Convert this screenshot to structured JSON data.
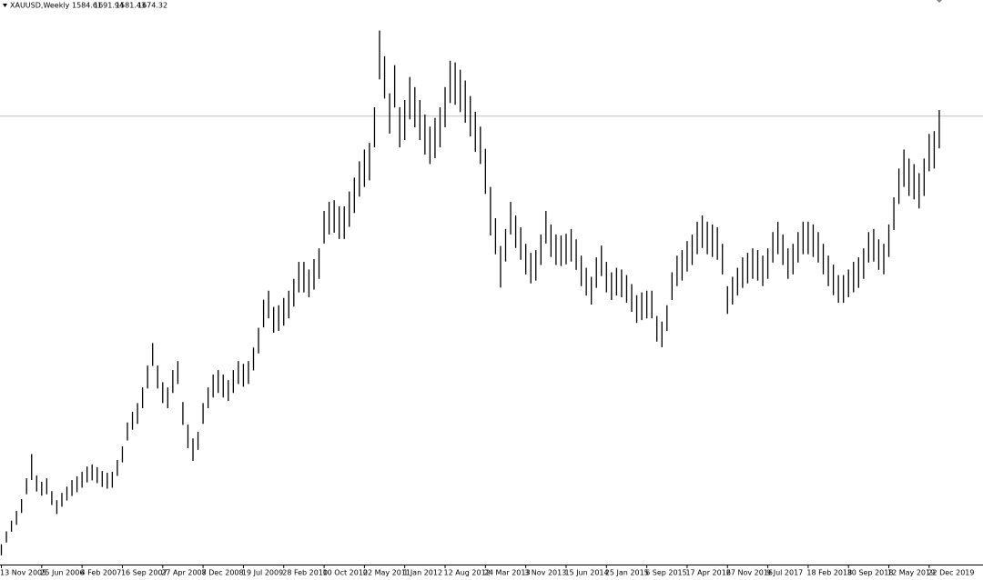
{
  "chart_data": {
    "type": "ohlc",
    "title": "XAUUSD,Weekly",
    "color": "#000000",
    "ohlc": [
      1584.61,
      1691.94,
      1581.43,
      1674.32
    ],
    "ylim": [
      384,
      2009
    ],
    "categories": [
      "13 Nov 2005",
      null,
      null,
      null,
      null,
      null,
      null,
      null,
      "25 Jun 2006",
      null,
      null,
      null,
      null,
      null,
      null,
      null,
      "4 Feb 2007",
      null,
      null,
      null,
      null,
      null,
      null,
      null,
      "16 Sep 2007",
      null,
      null,
      null,
      null,
      null,
      null,
      null,
      "27 Apr 2008",
      null,
      null,
      null,
      null,
      null,
      null,
      null,
      "7 Dec 2008",
      null,
      null,
      null,
      null,
      null,
      null,
      null,
      "19 Jul 2009",
      null,
      null,
      null,
      null,
      null,
      null,
      null,
      "28 Feb 2010",
      null,
      null,
      null,
      null,
      null,
      null,
      null,
      "10 Oct 2010",
      null,
      null,
      null,
      null,
      null,
      null,
      null,
      "22 May 2011",
      null,
      null,
      null,
      null,
      null,
      null,
      null,
      "1 Jan 2012",
      null,
      null,
      null,
      null,
      null,
      null,
      null,
      "12 Aug 2012",
      null,
      null,
      null,
      null,
      null,
      null,
      null,
      "24 Mar 2013",
      null,
      null,
      null,
      null,
      null,
      null,
      null,
      "3 Nov 2013",
      null,
      null,
      null,
      null,
      null,
      null,
      null,
      "15 Jun 2014",
      null,
      null,
      null,
      null,
      null,
      null,
      null,
      "25 Jan 2015",
      null,
      null,
      null,
      null,
      null,
      null,
      null,
      "6 Sep 2015",
      null,
      null,
      null,
      null,
      null,
      null,
      null,
      "17 Apr 2016",
      null,
      null,
      null,
      null,
      null,
      null,
      null,
      "27 Nov 2016",
      null,
      null,
      null,
      null,
      null,
      null,
      null,
      "9 Jul 2017",
      null,
      null,
      null,
      null,
      null,
      null,
      null,
      "18 Feb 2018",
      null,
      null,
      null,
      null,
      null,
      null,
      null,
      "30 Sep 2018",
      null,
      null,
      null,
      null,
      null,
      null,
      null,
      "12 May 2019",
      null,
      null,
      null,
      null,
      null,
      null,
      null,
      "22 Dec 2019",
      null,
      null
    ],
    "high": [
      440,
      477,
      508,
      536,
      570,
      630,
      700,
      638,
      620,
      630,
      593,
      567,
      588,
      606,
      625,
      636,
      649,
      664,
      670,
      662,
      651,
      646,
      649,
      683,
      722,
      791,
      822,
      847,
      892,
      955,
      1020,
      955,
      907,
      892,
      942,
      968,
      850,
      785,
      745,
      764,
      847,
      892,
      929,
      942,
      929,
      913,
      942,
      968,
      960,
      968,
      1007,
      1064,
      1145,
      1171,
      1124,
      1129,
      1150,
      1171,
      1205,
      1254,
      1254,
      1232,
      1262,
      1293,
      1401,
      1427,
      1432,
      1414,
      1414,
      1457,
      1497,
      1544,
      1578,
      1597,
      1700,
      1921,
      1847,
      1740,
      1821,
      1700,
      1721,
      1787,
      1758,
      1721,
      1679,
      1644,
      1669,
      1700,
      1758,
      1834,
      1829,
      1808,
      1777,
      1732,
      1687,
      1644,
      1580,
      1470,
      1380,
      1300,
      1349,
      1427,
      1388,
      1354,
      1306,
      1280,
      1288,
      1333,
      1401,
      1362,
      1333,
      1330,
      1335,
      1349,
      1319,
      1272,
      1237,
      1211,
      1267,
      1301,
      1254,
      1224,
      1237,
      1232,
      1216,
      1190,
      1158,
      1166,
      1171,
      1171,
      1098,
      1082,
      1129,
      1224,
      1272,
      1288,
      1314,
      1333,
      1370,
      1388,
      1370,
      1362,
      1354,
      1306,
      1184,
      1211,
      1237,
      1267,
      1280,
      1293,
      1288,
      1272,
      1293,
      1340,
      1370,
      1333,
      1293,
      1306,
      1340,
      1370,
      1370,
      1362,
      1340,
      1306,
      1272,
      1246,
      1216,
      1216,
      1232,
      1254,
      1267,
      1293,
      1340,
      1349,
      1319,
      1306,
      1362,
      1440,
      1523,
      1578,
      1552,
      1536,
      1510,
      1552,
      1623,
      1631,
      1691.94
    ],
    "low": [
      408,
      445,
      476,
      496,
      530,
      584,
      625,
      592,
      580,
      584,
      553,
      527,
      548,
      566,
      579,
      590,
      603,
      618,
      624,
      616,
      605,
      600,
      603,
      637,
      676,
      739,
      770,
      787,
      832,
      889,
      954,
      889,
      847,
      832,
      876,
      902,
      784,
      717,
      680,
      712,
      787,
      832,
      863,
      876,
      863,
      853,
      876,
      902,
      894,
      902,
      941,
      990,
      1065,
      1091,
      1050,
      1055,
      1070,
      1091,
      1125,
      1166,
      1166,
      1152,
      1174,
      1205,
      1307,
      1333,
      1338,
      1320,
      1320,
      1355,
      1395,
      1442,
      1470,
      1489,
      1584,
      1780,
      1725,
      1624,
      1699,
      1584,
      1605,
      1665,
      1642,
      1605,
      1563,
      1536,
      1553,
      1584,
      1642,
      1712,
      1707,
      1686,
      1655,
      1616,
      1571,
      1536,
      1450,
      1330,
      1276,
      1180,
      1255,
      1333,
      1294,
      1260,
      1218,
      1192,
      1200,
      1245,
      1307,
      1268,
      1245,
      1242,
      1247,
      1255,
      1231,
      1184,
      1157,
      1131,
      1179,
      1213,
      1166,
      1144,
      1157,
      1152,
      1136,
      1110,
      1078,
      1086,
      1091,
      1091,
      1024,
      1008,
      1055,
      1144,
      1184,
      1200,
      1226,
      1245,
      1276,
      1294,
      1276,
      1268,
      1260,
      1218,
      1104,
      1131,
      1157,
      1179,
      1192,
      1205,
      1200,
      1184,
      1205,
      1252,
      1276,
      1245,
      1205,
      1218,
      1252,
      1276,
      1276,
      1268,
      1252,
      1218,
      1184,
      1158,
      1136,
      1136,
      1152,
      1166,
      1179,
      1205,
      1252,
      1255,
      1231,
      1218,
      1268,
      1346,
      1421,
      1470,
      1444,
      1434,
      1408,
      1444,
      1515,
      1523,
      1581.43
    ]
  }
}
